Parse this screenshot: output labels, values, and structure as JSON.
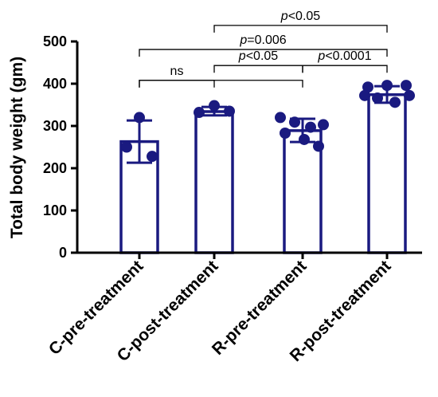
{
  "chart_data": {
    "type": "bar",
    "title": "",
    "xlabel": "",
    "ylabel": "Total body weight (gm)",
    "ylim": [
      0,
      500
    ],
    "yticks": [
      0,
      100,
      200,
      300,
      400,
      500
    ],
    "grid": false,
    "categories": [
      "C-pre-treatment",
      "C-post-treatment",
      "R-pre-treatment",
      "R-post-treatment"
    ],
    "series": [
      {
        "values": [
          263,
          334,
          289,
          374
        ]
      }
    ],
    "error_bars": [
      {
        "low": 213,
        "high": 313
      },
      {
        "low": 325,
        "high": 345
      },
      {
        "low": 262,
        "high": 317
      },
      {
        "low": 355,
        "high": 394
      }
    ],
    "points": [
      [
        320,
        250,
        228
      ],
      [
        332,
        348,
        335
      ],
      [
        320,
        309,
        297,
        303,
        283,
        268,
        252
      ],
      [
        392,
        396,
        396,
        372,
        366,
        356,
        372
      ]
    ],
    "annotations": [
      {
        "pre": "",
        "italic": "p",
        "post": "<0.05",
        "from": 1,
        "to": 3,
        "y": 538
      },
      {
        "pre": "",
        "italic": "p",
        "post": "=0.006",
        "from": 0,
        "to": 3,
        "y": 481
      },
      {
        "pre": "ns",
        "italic": "",
        "post": "",
        "from": 0,
        "to": 1,
        "y": 408
      },
      {
        "pre": "",
        "italic": "p",
        "post": "<0.05",
        "from": 1,
        "to": 2,
        "y": 443
      },
      {
        "pre": "",
        "italic": "p",
        "post": "<0.0001",
        "from": 2,
        "to": 3,
        "y": 443
      },
      {
        "pre": "",
        "italic": "",
        "post": "",
        "from": 0,
        "to": 2,
        "y": 408
      }
    ],
    "colors": {
      "bar": "#1a1a80",
      "point": "#1a1a80",
      "axis": "#000000"
    }
  }
}
